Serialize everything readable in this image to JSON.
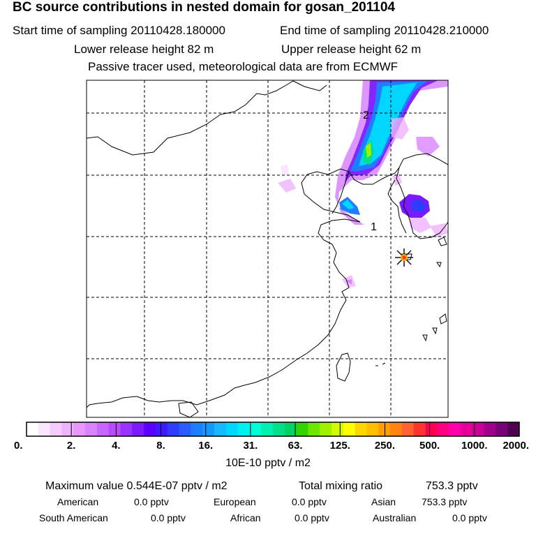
{
  "header": {
    "title": "BC  source contributions in nested domain for gosan_201104",
    "start_label": "Start time of sampling 20110428.180000",
    "end_label": "End time of sampling 20110428.210000",
    "lower_label": "Lower release height   82 m",
    "upper_label": "Upper release height   62 m",
    "tracer_label": "Passive tracer used, meteorological data are from ECMWF"
  },
  "chart_data": {
    "type": "heatmap",
    "title": "BC  source contributions in nested domain for gosan_201104",
    "colorbar_unit": "10E-10 pptv / m2",
    "colorbar_ticks": [
      "0.",
      "2.",
      "4.",
      "8.",
      "16.",
      "31.",
      "63.",
      "125.",
      "250.",
      "500.",
      "1000.",
      "2000."
    ],
    "colorbar_colors": [
      "#ffffff",
      "#fbe6ff",
      "#f5ccff",
      "#efb3ff",
      "#e996ff",
      "#d884ff",
      "#c966ff",
      "#b84cff",
      "#9933ff",
      "#7a1aff",
      "#5c00ff",
      "#3d1aff",
      "#2e3cff",
      "#2a5cff",
      "#1f7eff",
      "#1698ff",
      "#16b8ff",
      "#00d6ff",
      "#00f0f0",
      "#00ffd6",
      "#00f0b0",
      "#00e08a",
      "#00d264",
      "#33d200",
      "#6ee600",
      "#a0f000",
      "#d2fa00",
      "#ffff00",
      "#ffd700",
      "#ffbe00",
      "#ffa000",
      "#ff8214",
      "#ff6432",
      "#ff3232",
      "#ff0050",
      "#ff0082",
      "#ff00aa",
      "#e6009b",
      "#c80096",
      "#a0008c",
      "#780078",
      "#500050"
    ],
    "trajectory_labels": [
      "2",
      "1"
    ],
    "receptor": "Gosan"
  },
  "stats": {
    "max_label": "Maximum value  0.544E-07 pptv / m2",
    "total_label": "Total mixing ratio",
    "total_value": "753.3 pptv",
    "regions": [
      {
        "name": "American",
        "value": "0.0 pptv"
      },
      {
        "name": "European",
        "value": "0.0 pptv"
      },
      {
        "name": "Asian",
        "value": "753.3 pptv"
      },
      {
        "name": "South American",
        "value": "0.0 pptv"
      },
      {
        "name": "African",
        "value": "0.0 pptv"
      },
      {
        "name": "Australian",
        "value": "0.0 pptv"
      }
    ]
  }
}
